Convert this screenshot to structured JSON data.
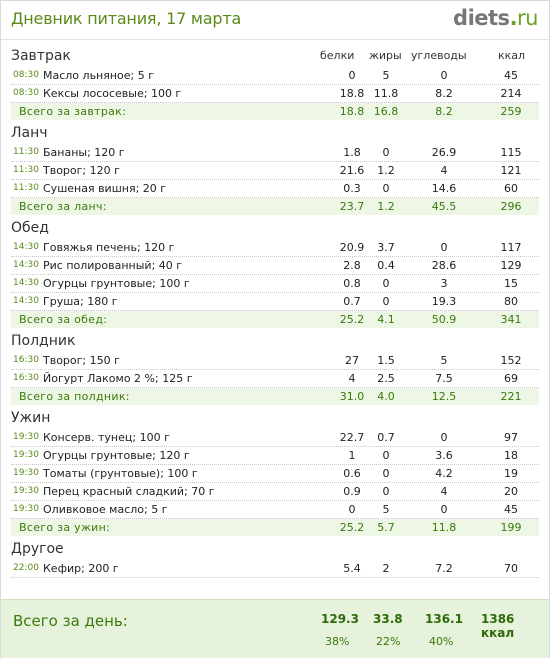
{
  "header": {
    "title": "Дневник питания, 17 марта",
    "logo_name": "diets",
    "logo_dot": ".",
    "logo_tld": "ru"
  },
  "columns": {
    "protein": "белки",
    "fat": "жиры",
    "carbs": "углеводы",
    "kcal": "ккал"
  },
  "meals": [
    {
      "title": "Завтрак",
      "items": [
        {
          "time": "08:30",
          "name": "Масло льняное; 5 г",
          "protein": "0",
          "fat": "5",
          "carbs": "0",
          "kcal": "45"
        },
        {
          "time": "08:30",
          "name": "Кексы лососевые; 100 г",
          "protein": "18.8",
          "fat": "11.8",
          "carbs": "8.2",
          "kcal": "214"
        }
      ],
      "total": {
        "label": "Всего за завтрак:",
        "protein": "18.8",
        "fat": "16.8",
        "carbs": "8.2",
        "kcal": "259"
      }
    },
    {
      "title": "Ланч",
      "items": [
        {
          "time": "11:30",
          "name": "Бананы; 120 г",
          "protein": "1.8",
          "fat": "0",
          "carbs": "26.9",
          "kcal": "115"
        },
        {
          "time": "11:30",
          "name": "Творог; 120 г",
          "protein": "21.6",
          "fat": "1.2",
          "carbs": "4",
          "kcal": "121"
        },
        {
          "time": "11:30",
          "name": "Сушеная вишня; 20 г",
          "protein": "0.3",
          "fat": "0",
          "carbs": "14.6",
          "kcal": "60"
        }
      ],
      "total": {
        "label": "Всего за ланч:",
        "protein": "23.7",
        "fat": "1.2",
        "carbs": "45.5",
        "kcal": "296"
      }
    },
    {
      "title": "Обед",
      "items": [
        {
          "time": "14:30",
          "name": "Говяжья печень; 120 г",
          "protein": "20.9",
          "fat": "3.7",
          "carbs": "0",
          "kcal": "117"
        },
        {
          "time": "14:30",
          "name": "Рис полированный; 40 г",
          "protein": "2.8",
          "fat": "0.4",
          "carbs": "28.6",
          "kcal": "129"
        },
        {
          "time": "14:30",
          "name": "Огурцы грунтовые; 100 г",
          "protein": "0.8",
          "fat": "0",
          "carbs": "3",
          "kcal": "15"
        },
        {
          "time": "14:30",
          "name": "Груша; 180 г",
          "protein": "0.7",
          "fat": "0",
          "carbs": "19.3",
          "kcal": "80"
        }
      ],
      "total": {
        "label": "Всего за обед:",
        "protein": "25.2",
        "fat": "4.1",
        "carbs": "50.9",
        "kcal": "341"
      }
    },
    {
      "title": "Полдник",
      "items": [
        {
          "time": "16:30",
          "name": "Творог; 150 г",
          "protein": "27",
          "fat": "1.5",
          "carbs": "5",
          "kcal": "152"
        },
        {
          "time": "16:30",
          "name": "Йогурт Лакомо 2 %; 125 г",
          "protein": "4",
          "fat": "2.5",
          "carbs": "7.5",
          "kcal": "69"
        }
      ],
      "total": {
        "label": "Всего за полдник:",
        "protein": "31.0",
        "fat": "4.0",
        "carbs": "12.5",
        "kcal": "221"
      }
    },
    {
      "title": "Ужин",
      "items": [
        {
          "time": "19:30",
          "name": "Консерв. тунец; 100 г",
          "protein": "22.7",
          "fat": "0.7",
          "carbs": "0",
          "kcal": "97"
        },
        {
          "time": "19:30",
          "name": "Огурцы грунтовые; 120 г",
          "protein": "1",
          "fat": "0",
          "carbs": "3.6",
          "kcal": "18"
        },
        {
          "time": "19:30",
          "name": "Томаты (грунтовые); 100 г",
          "protein": "0.6",
          "fat": "0",
          "carbs": "4.2",
          "kcal": "19"
        },
        {
          "time": "19:30",
          "name": "Перец красный сладкий; 70 г",
          "protein": "0.9",
          "fat": "0",
          "carbs": "4",
          "kcal": "20"
        },
        {
          "time": "19:30",
          "name": "Оливковое масло; 5 г",
          "protein": "0",
          "fat": "5",
          "carbs": "0",
          "kcal": "45"
        }
      ],
      "total": {
        "label": "Всего за ужин:",
        "protein": "25.2",
        "fat": "5.7",
        "carbs": "11.8",
        "kcal": "199"
      }
    },
    {
      "title": "Другое",
      "items": [
        {
          "time": "22:00",
          "name": "Кефир; 200 г",
          "protein": "5.4",
          "fat": "2",
          "carbs": "7.2",
          "kcal": "70"
        }
      ],
      "total": null
    }
  ],
  "day_total": {
    "label": "Всего за день:",
    "protein": "129.3",
    "fat": "33.8",
    "carbs": "136.1",
    "kcal": "1386 ккал",
    "protein_pct": "38%",
    "fat_pct": "22%",
    "carbs_pct": "40%"
  },
  "colors": {
    "accent": "#5a8a1a",
    "total_bg": "#eef6e6",
    "footer_bg": "#e6f2dc"
  }
}
